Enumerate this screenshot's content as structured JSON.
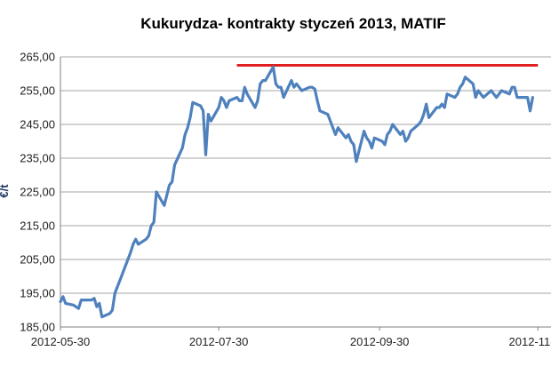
{
  "chart_data": {
    "type": "line",
    "title": "Kukurydza- kontrakty styczeń 2013, MATIF",
    "ylabel": "€/t",
    "ylim": [
      185,
      265
    ],
    "yticks": [
      "185,00",
      "195,00",
      "205,00",
      "215,00",
      "225,00",
      "235,00",
      "245,00",
      "255,00",
      "265,00"
    ],
    "xticks": [
      {
        "label": "2012-05-30",
        "date": "2012-05-30"
      },
      {
        "label": "2012-07-30",
        "date": "2012-07-30"
      },
      {
        "label": "2012-09-30",
        "date": "2012-09-30"
      },
      {
        "label": "2012-11-30",
        "date": "2012-11-30"
      }
    ],
    "grid": "horizontal",
    "colors": {
      "series": "#4f81bd",
      "reference_line": "#e02020",
      "grid": "#a6a6a6",
      "axis": "#808080"
    },
    "series": [
      {
        "points": [
          [
            "2012-05-30",
            192.5
          ],
          [
            "2012-05-31",
            194
          ],
          [
            "2012-06-01",
            192
          ],
          [
            "2012-06-04",
            191.5
          ],
          [
            "2012-06-05",
            191
          ],
          [
            "2012-06-06",
            190.5
          ],
          [
            "2012-06-07",
            193
          ],
          [
            "2012-06-08",
            193
          ],
          [
            "2012-06-11",
            193
          ],
          [
            "2012-06-12",
            193.5
          ],
          [
            "2012-06-13",
            191
          ],
          [
            "2012-06-14",
            192
          ],
          [
            "2012-06-15",
            188
          ],
          [
            "2012-06-18",
            189
          ],
          [
            "2012-06-19",
            190
          ],
          [
            "2012-06-20",
            195
          ],
          [
            "2012-06-21",
            197
          ],
          [
            "2012-06-22",
            199
          ],
          [
            "2012-06-25",
            205
          ],
          [
            "2012-06-26",
            207
          ],
          [
            "2012-06-27",
            209.5
          ],
          [
            "2012-06-28",
            211
          ],
          [
            "2012-06-29",
            209.5
          ],
          [
            "2012-07-02",
            211
          ],
          [
            "2012-07-03",
            212
          ],
          [
            "2012-07-04",
            215
          ],
          [
            "2012-07-05",
            216
          ],
          [
            "2012-07-06",
            225
          ],
          [
            "2012-07-09",
            221
          ],
          [
            "2012-07-10",
            224
          ],
          [
            "2012-07-11",
            227
          ],
          [
            "2012-07-12",
            228
          ],
          [
            "2012-07-13",
            233
          ],
          [
            "2012-07-16",
            238
          ],
          [
            "2012-07-17",
            242
          ],
          [
            "2012-07-18",
            244
          ],
          [
            "2012-07-19",
            247
          ],
          [
            "2012-07-20",
            251.5
          ],
          [
            "2012-07-23",
            250.5
          ],
          [
            "2012-07-24",
            249
          ],
          [
            "2012-07-25",
            236
          ],
          [
            "2012-07-26",
            248
          ],
          [
            "2012-07-27",
            246
          ],
          [
            "2012-07-30",
            250
          ],
          [
            "2012-07-31",
            253
          ],
          [
            "2012-08-01",
            252
          ],
          [
            "2012-08-02",
            250
          ],
          [
            "2012-08-03",
            252
          ],
          [
            "2012-08-06",
            253
          ],
          [
            "2012-08-07",
            252
          ],
          [
            "2012-08-08",
            252
          ],
          [
            "2012-08-09",
            256
          ],
          [
            "2012-08-10",
            254
          ],
          [
            "2012-08-13",
            250
          ],
          [
            "2012-08-14",
            252
          ],
          [
            "2012-08-15",
            257
          ],
          [
            "2012-08-16",
            258
          ],
          [
            "2012-08-17",
            258
          ],
          [
            "2012-08-20",
            262
          ],
          [
            "2012-08-21",
            257
          ],
          [
            "2012-08-22",
            256
          ],
          [
            "2012-08-23",
            256
          ],
          [
            "2012-08-24",
            253
          ],
          [
            "2012-08-27",
            258
          ],
          [
            "2012-08-28",
            256
          ],
          [
            "2012-08-29",
            257
          ],
          [
            "2012-08-30",
            256
          ],
          [
            "2012-08-31",
            255
          ],
          [
            "2012-09-03",
            256
          ],
          [
            "2012-09-04",
            256
          ],
          [
            "2012-09-05",
            255.5
          ],
          [
            "2012-09-06",
            252
          ],
          [
            "2012-09-07",
            249
          ],
          [
            "2012-09-10",
            248
          ],
          [
            "2012-09-11",
            246
          ],
          [
            "2012-09-12",
            244
          ],
          [
            "2012-09-13",
            242
          ],
          [
            "2012-09-14",
            244
          ],
          [
            "2012-09-17",
            241
          ],
          [
            "2012-09-18",
            242
          ],
          [
            "2012-09-19",
            240
          ],
          [
            "2012-09-20",
            239
          ],
          [
            "2012-09-21",
            234
          ],
          [
            "2012-09-24",
            243
          ],
          [
            "2012-09-25",
            241
          ],
          [
            "2012-09-26",
            240
          ],
          [
            "2012-09-27",
            238
          ],
          [
            "2012-09-28",
            241
          ],
          [
            "2012-10-01",
            240
          ],
          [
            "2012-10-02",
            239
          ],
          [
            "2012-10-03",
            242
          ],
          [
            "2012-10-04",
            243
          ],
          [
            "2012-10-05",
            245
          ],
          [
            "2012-10-08",
            242
          ],
          [
            "2012-10-09",
            243
          ],
          [
            "2012-10-10",
            240
          ],
          [
            "2012-10-11",
            241
          ],
          [
            "2012-10-12",
            243
          ],
          [
            "2012-10-15",
            245
          ],
          [
            "2012-10-16",
            246
          ],
          [
            "2012-10-17",
            248
          ],
          [
            "2012-10-18",
            251
          ],
          [
            "2012-10-19",
            247
          ],
          [
            "2012-10-22",
            250
          ],
          [
            "2012-10-23",
            250
          ],
          [
            "2012-10-24",
            251
          ],
          [
            "2012-10-25",
            250
          ],
          [
            "2012-10-26",
            254
          ],
          [
            "2012-10-29",
            253
          ],
          [
            "2012-10-30",
            254
          ],
          [
            "2012-10-31",
            256
          ],
          [
            "2012-11-01",
            257
          ],
          [
            "2012-11-02",
            259
          ],
          [
            "2012-11-05",
            257
          ],
          [
            "2012-11-06",
            253
          ],
          [
            "2012-11-07",
            255
          ],
          [
            "2012-11-08",
            254
          ],
          [
            "2012-11-09",
            253
          ],
          [
            "2012-11-12",
            255
          ],
          [
            "2012-11-13",
            254
          ],
          [
            "2012-11-14",
            253
          ],
          [
            "2012-11-15",
            254
          ],
          [
            "2012-11-16",
            255
          ],
          [
            "2012-11-19",
            254
          ],
          [
            "2012-11-20",
            256
          ],
          [
            "2012-11-21",
            256
          ],
          [
            "2012-11-22",
            253
          ],
          [
            "2012-11-23",
            253
          ],
          [
            "2012-11-26",
            253
          ],
          [
            "2012-11-27",
            249
          ],
          [
            "2012-11-28",
            253
          ]
        ]
      }
    ],
    "reference_lines": [
      {
        "from": "2012-08-06",
        "to": "2012-11-30",
        "y": 262.5
      }
    ]
  }
}
